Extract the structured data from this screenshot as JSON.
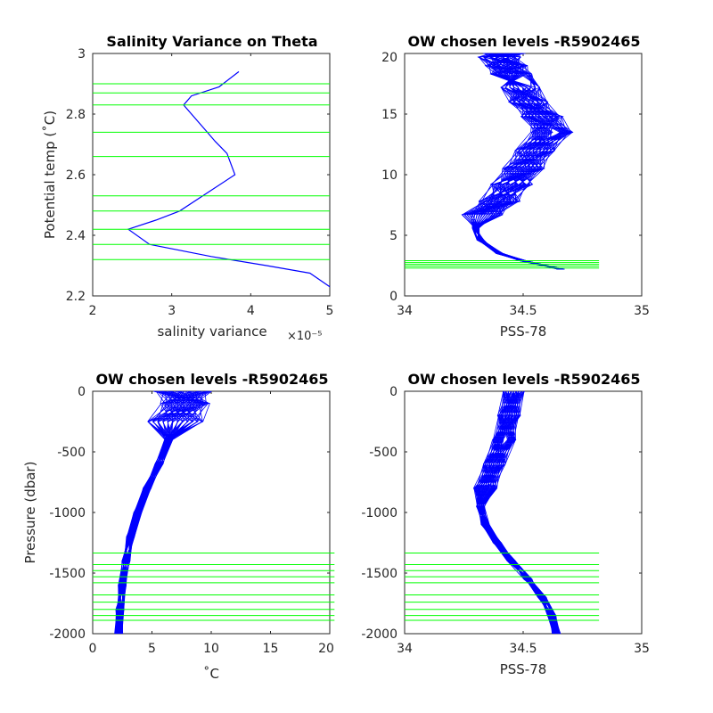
{
  "colors": {
    "profile": "#0000ff",
    "levels": "#00ff00",
    "axis": "#262626"
  },
  "chart_data": [
    {
      "type": "line",
      "title": "Salinity Variance on Theta",
      "xlabel": "salinity variance",
      "x_exponent_label": "×10⁻⁵",
      "ylabel": "Potential temp (˚C)",
      "xlim": [
        2,
        5
      ],
      "ylim": [
        2.2,
        3.0
      ],
      "xticks": [
        "2",
        "3",
        "4",
        "5"
      ],
      "yticks": [
        "2.2",
        "2.4",
        "2.6",
        "2.8",
        "3"
      ],
      "series": [
        {
          "x": [
            3.85,
            3.6,
            3.25,
            3.15,
            3.45,
            3.55,
            3.7,
            3.8,
            3.45,
            3.1,
            2.8,
            2.45,
            2.72,
            3.5,
            4.2,
            4.75,
            5.0
          ],
          "y": [
            2.94,
            2.89,
            2.86,
            2.83,
            2.74,
            2.71,
            2.67,
            2.6,
            2.54,
            2.48,
            2.45,
            2.42,
            2.37,
            2.33,
            2.3,
            2.275,
            2.23
          ]
        }
      ],
      "levels_y": [
        2.32,
        2.37,
        2.42,
        2.48,
        2.53,
        2.66,
        2.74,
        2.83,
        2.87,
        2.9
      ]
    },
    {
      "type": "line",
      "title": "OW chosen levels -R5902465",
      "xlabel": "PSS-78",
      "xlim": [
        34,
        35
      ],
      "ylim": [
        0,
        20
      ],
      "xticks": [
        "34",
        "34.5",
        "35"
      ],
      "yticks": [
        "0",
        "5",
        "10",
        "15",
        "20"
      ],
      "series": [
        {
          "x": [
            34.66,
            34.5,
            34.4,
            34.32,
            34.3,
            34.33,
            34.4,
            34.45,
            34.5,
            34.55,
            34.62,
            34.58,
            34.52,
            34.48,
            34.45,
            34.43,
            34.4,
            34.42
          ],
          "y": [
            2.2,
            2.9,
            3.5,
            4.6,
            5.6,
            6.7,
            7.8,
            9.2,
            10.5,
            12.0,
            13.5,
            14.8,
            16.0,
            17.2,
            18.3,
            19.0,
            19.7,
            20.0
          ]
        }
      ],
      "levels_y": [
        2.3,
        2.45,
        2.6,
        2.75,
        2.9
      ]
    },
    {
      "type": "line",
      "title": "OW chosen levels -R5902465",
      "xlabel": "˚C",
      "ylabel": "Pressure (dbar)",
      "xlim": [
        0,
        20
      ],
      "ylim": [
        -2000,
        0
      ],
      "xticks": [
        "0",
        "5",
        "10",
        "15",
        "20"
      ],
      "yticks": [
        "-2000",
        "-1500",
        "-1000",
        "-500",
        "0"
      ],
      "series": [
        {
          "x": [
            2.2,
            2.3,
            2.5,
            2.8,
            3.2,
            3.8,
            4.6,
            5.6,
            6.4,
            7.0,
            7.4,
            7.6
          ],
          "y": [
            -2000,
            -1800,
            -1600,
            -1400,
            -1200,
            -1000,
            -800,
            -600,
            -400,
            -250,
            -100,
            0
          ]
        }
      ],
      "levels_y": [
        -1335,
        -1430,
        -1480,
        -1530,
        -1580,
        -1680,
        -1740,
        -1800,
        -1850,
        -1890
      ]
    },
    {
      "type": "line",
      "title": "OW chosen levels -R5902465",
      "xlabel": "PSS-78",
      "xlim": [
        34,
        35
      ],
      "ylim": [
        -2000,
        0
      ],
      "xticks": [
        "34",
        "34.5",
        "35"
      ],
      "yticks": [
        "-2000",
        "-1500",
        "-1000",
        "-500",
        "0"
      ],
      "series": [
        {
          "x": [
            34.64,
            34.62,
            34.58,
            34.52,
            34.45,
            34.39,
            34.34,
            34.32,
            34.34,
            34.38,
            34.42,
            34.44,
            34.46
          ],
          "y": [
            -2000,
            -1850,
            -1700,
            -1550,
            -1400,
            -1250,
            -1100,
            -950,
            -800,
            -600,
            -400,
            -200,
            0
          ]
        }
      ],
      "levels_y": [
        -1335,
        -1430,
        -1480,
        -1530,
        -1580,
        -1680,
        -1740,
        -1800,
        -1850,
        -1890
      ]
    }
  ]
}
